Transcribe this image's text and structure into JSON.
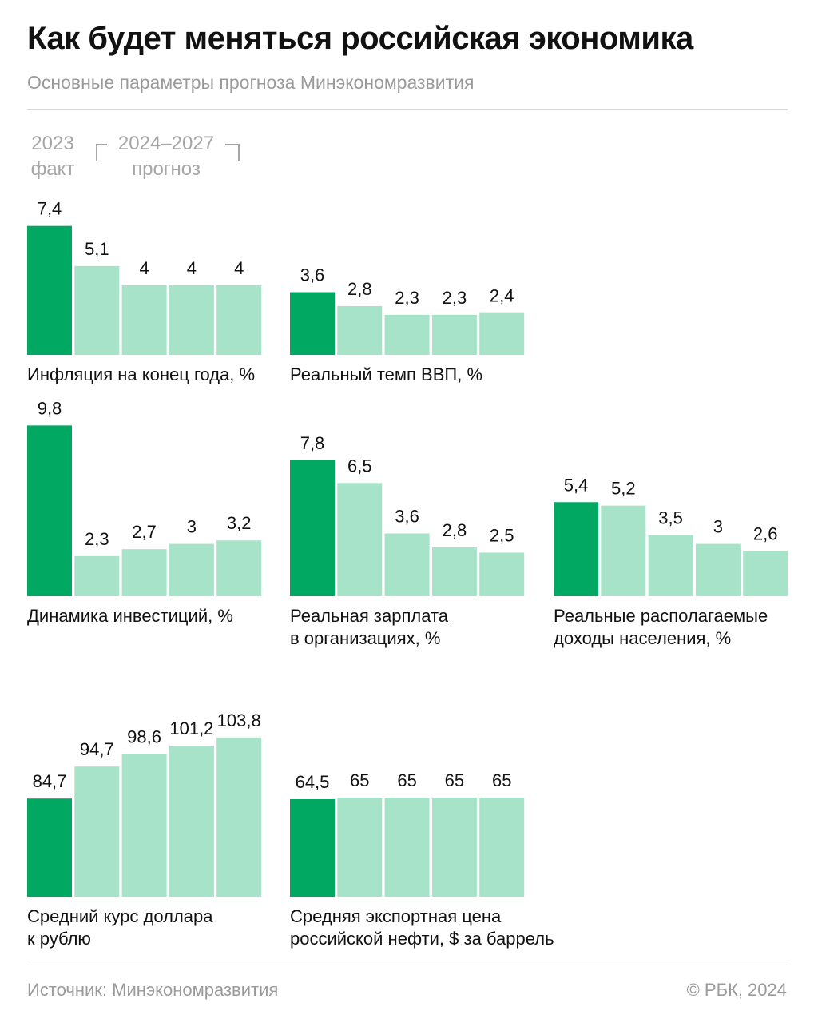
{
  "header": {
    "title": "Как будет меняться российская экономика",
    "subtitle": "Основные параметры прогноза Минэкономразвития"
  },
  "legend": {
    "fact_year": "2023",
    "fact_label": "факт",
    "forecast_years": "2024–2027",
    "forecast_label": "прогноз"
  },
  "colors": {
    "fact": "#00a862",
    "forecast": "#a6e3c8"
  },
  "chart_data": [
    {
      "type": "bar",
      "title_lines": [
        "Инфляция на конец года, %"
      ],
      "categories": [
        "2023",
        "2024",
        "2025",
        "2026",
        "2027"
      ],
      "values": [
        7.4,
        5.1,
        4,
        4,
        4
      ],
      "labels": [
        "7,4",
        "5,1",
        "4",
        "4",
        "4"
      ]
    },
    {
      "type": "bar",
      "title_lines": [
        "Реальный темп ВВП, %"
      ],
      "categories": [
        "2023",
        "2024",
        "2025",
        "2026",
        "2027"
      ],
      "values": [
        3.6,
        2.8,
        2.3,
        2.3,
        2.4
      ],
      "labels": [
        "3,6",
        "2,8",
        "2,3",
        "2,3",
        "2,4"
      ]
    },
    {
      "type": "bar",
      "title_lines": [
        "Динамика инвестиций, %"
      ],
      "categories": [
        "2023",
        "2024",
        "2025",
        "2026",
        "2027"
      ],
      "values": [
        9.8,
        2.3,
        2.7,
        3,
        3.2
      ],
      "labels": [
        "9,8",
        "2,3",
        "2,7",
        "3",
        "3,2"
      ]
    },
    {
      "type": "bar",
      "title_lines": [
        "Реальная зарплата",
        "в организациях, %"
      ],
      "categories": [
        "2023",
        "2024",
        "2025",
        "2026",
        "2027"
      ],
      "values": [
        7.8,
        6.5,
        3.6,
        2.8,
        2.5
      ],
      "labels": [
        "7,8",
        "6,5",
        "3,6",
        "2,8",
        "2,5"
      ]
    },
    {
      "type": "bar",
      "title_lines": [
        "Реальные располагаемые",
        "доходы населения, %"
      ],
      "categories": [
        "2023",
        "2024",
        "2025",
        "2026",
        "2027"
      ],
      "values": [
        5.4,
        5.2,
        3.5,
        3,
        2.6
      ],
      "labels": [
        "5,4",
        "5,2",
        "3,5",
        "3",
        "2,6"
      ]
    },
    {
      "type": "bar",
      "title_lines": [
        "Средний курс доллара",
        "к рублю"
      ],
      "categories": [
        "2023",
        "2024",
        "2025",
        "2026",
        "2027"
      ],
      "values": [
        84.7,
        94.7,
        98.6,
        101.2,
        103.8
      ],
      "labels": [
        "84,7",
        "94,7",
        "98,6",
        "101,2",
        "103,8"
      ]
    },
    {
      "type": "bar",
      "title_lines": [
        "Средняя экспортная цена",
        "российской нефти, $ за баррель"
      ],
      "categories": [
        "2023",
        "2024",
        "2025",
        "2026",
        "2027"
      ],
      "values": [
        64.5,
        65,
        65,
        65,
        65
      ],
      "labels": [
        "64,5",
        "65",
        "65",
        "65",
        "65"
      ]
    }
  ],
  "footer": {
    "source": "Источник: Минэкономразвития",
    "copyright": "© РБК, 2024"
  }
}
